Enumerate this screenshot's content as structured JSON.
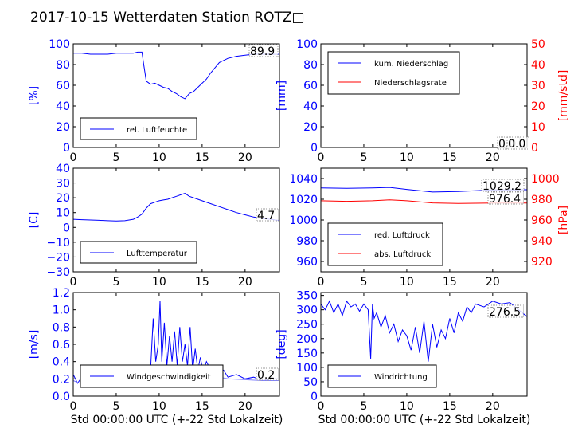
{
  "title": "2017-10-15 Wetterdaten Station ROTZ□",
  "xlabel": "Std 00:00:00 UTC (+-22 Std Lokalzeit)",
  "colors": {
    "blue": "#0000ff",
    "red": "#ff0000",
    "light_blue": "#8080ff"
  },
  "chart_data": [
    {
      "type": "line",
      "ylabel": "[%]",
      "xlim": [
        0,
        24
      ],
      "ylim": [
        0,
        100
      ],
      "xticks": [
        "0",
        "5",
        "10",
        "15",
        "20"
      ],
      "yticks": [
        "0",
        "20",
        "40",
        "60",
        "80",
        "100"
      ],
      "legend": "lower-left",
      "last_value_label": "89.9",
      "series": [
        {
          "name": "rel. Luftfeuchte",
          "color": "#0000ff",
          "x": [
            0,
            1,
            2,
            3,
            4,
            5,
            6,
            7,
            7.5,
            8,
            8.2,
            8.5,
            9,
            9.5,
            10,
            10.5,
            11,
            11.5,
            12,
            12.5,
            13,
            13.5,
            14,
            14.5,
            15,
            15.5,
            16,
            16.5,
            17,
            18,
            19,
            20,
            21,
            22,
            23,
            24
          ],
          "y": [
            91,
            91,
            90,
            90,
            90,
            91,
            91,
            91,
            92,
            92,
            80,
            64,
            61,
            62,
            60,
            58,
            57,
            54,
            52,
            49,
            47,
            52,
            54,
            58,
            62,
            66,
            72,
            77,
            82,
            86,
            88,
            89,
            90,
            90,
            90,
            89.9
          ]
        }
      ]
    },
    {
      "type": "line",
      "ylabel": "[mm]",
      "ylabel_right": "[mm/std]",
      "xlim": [
        0,
        24
      ],
      "ylim": [
        0,
        100
      ],
      "ylim_right": [
        0,
        50
      ],
      "xticks": [
        "0",
        "5",
        "10",
        "15",
        "20"
      ],
      "yticks": [
        "0",
        "20",
        "40",
        "60",
        "80",
        "100"
      ],
      "yticks_right": [
        "0",
        "10",
        "20",
        "30",
        "40",
        "50"
      ],
      "legend": "upper-left",
      "value_labels": [
        "0.0",
        "0.0"
      ],
      "series": [
        {
          "name": "kum. Niederschlag",
          "color": "#0000ff",
          "axis": "left",
          "x": [
            0,
            24
          ],
          "y": [
            0,
            0
          ]
        },
        {
          "name": "Niederschlagsrate",
          "color": "#ff0000",
          "axis": "right",
          "x": [
            0,
            24
          ],
          "y": [
            0,
            0
          ]
        }
      ]
    },
    {
      "type": "line",
      "ylabel": "[C]",
      "xlim": [
        0,
        24
      ],
      "ylim": [
        -30,
        40
      ],
      "xticks": [
        "0",
        "5",
        "10",
        "15",
        "20"
      ],
      "yticks": [
        "−30",
        "−20",
        "−10",
        "0",
        "10",
        "20",
        "30",
        "40"
      ],
      "legend": "lower-left",
      "last_value_label": "4.7",
      "series": [
        {
          "name": "Lufttemperatur",
          "color": "#0000ff",
          "x": [
            0,
            1,
            2,
            3,
            4,
            5,
            6,
            7,
            7.5,
            8,
            8.5,
            9,
            9.5,
            10,
            10.5,
            11,
            11.5,
            12,
            12.5,
            13,
            13.5,
            14,
            15,
            16,
            17,
            18,
            19,
            20,
            21,
            22,
            23,
            24
          ],
          "y": [
            5.5,
            5.2,
            5.0,
            4.8,
            4.5,
            4.3,
            4.5,
            5.5,
            7,
            9,
            13,
            16,
            17,
            18,
            18.5,
            19,
            20,
            21,
            22,
            23,
            21,
            20,
            18,
            16,
            14,
            12,
            10,
            8.5,
            7,
            6,
            5.5,
            4.7
          ]
        }
      ]
    },
    {
      "type": "line",
      "ylabel_right": "[hPa]",
      "xlim": [
        0,
        24
      ],
      "ylim": [
        950,
        1050
      ],
      "ylim_right": [
        910,
        1010
      ],
      "xticks": [
        "0",
        "5",
        "10",
        "15",
        "20"
      ],
      "yticks": [
        "960",
        "980",
        "1000",
        "1020",
        "1040"
      ],
      "yticks_right": [
        "920",
        "940",
        "960",
        "980",
        "1000"
      ],
      "legend": "lower-left",
      "value_labels": [
        "1029.2",
        "976.4"
      ],
      "series": [
        {
          "name": "red. Luftdruck",
          "color": "#0000ff",
          "axis": "left",
          "x": [
            0,
            3,
            6,
            8,
            10,
            13,
            16,
            20,
            24
          ],
          "y": [
            1031,
            1030.5,
            1031,
            1031.5,
            1029.5,
            1027,
            1027.5,
            1029,
            1029.2
          ]
        },
        {
          "name": "abs. Luftdruck",
          "color": "#ff0000",
          "axis": "right",
          "x": [
            0,
            3,
            6,
            8,
            10,
            13,
            16,
            20,
            24
          ],
          "y": [
            978.5,
            978,
            978.5,
            979.5,
            978.5,
            976.5,
            976,
            976.3,
            976.4
          ]
        }
      ]
    },
    {
      "type": "line",
      "ylabel": "[m/s]",
      "xlim": [
        0,
        24
      ],
      "ylim": [
        0,
        1.2
      ],
      "xticks": [
        "0",
        "5",
        "10",
        "15",
        "20"
      ],
      "yticks": [
        "0.0",
        "0.2",
        "0.4",
        "0.6",
        "0.8",
        "1.0",
        "1.2"
      ],
      "legend": "lower-center",
      "last_value_label": "0.2",
      "series": [
        {
          "name": "Windgeschwindigkeit",
          "color": "#0000ff",
          "x": [
            0,
            0.5,
            1,
            1.5,
            2,
            2.5,
            3,
            3.5,
            4,
            4.5,
            5,
            5.5,
            6,
            6.5,
            7,
            7.5,
            8,
            8.5,
            9,
            9.3,
            9.6,
            9.9,
            10.1,
            10.3,
            10.6,
            10.9,
            11.2,
            11.5,
            11.8,
            12.1,
            12.4,
            12.7,
            13,
            13.3,
            13.6,
            13.9,
            14.2,
            14.5,
            14.8,
            15.1,
            15.5,
            16,
            16.5,
            17,
            17.5,
            18,
            19,
            20,
            21,
            22,
            23,
            24
          ],
          "y": [
            0.25,
            0.15,
            0.22,
            0.12,
            0.2,
            0.15,
            0.22,
            0.13,
            0.2,
            0.14,
            0.18,
            0.12,
            0.2,
            0.15,
            0.18,
            0.14,
            0.2,
            0.35,
            0.3,
            0.9,
            0.4,
            0.6,
            1.1,
            0.4,
            0.85,
            0.35,
            0.7,
            0.4,
            0.75,
            0.35,
            0.8,
            0.4,
            0.6,
            0.35,
            0.8,
            0.3,
            0.55,
            0.3,
            0.45,
            0.28,
            0.4,
            0.3,
            0.35,
            0.25,
            0.3,
            0.22,
            0.25,
            0.2,
            0.22,
            0.18,
            0.2,
            0.2
          ]
        },
        {
          "name": "",
          "color": "#8080ff",
          "x": [
            0,
            1,
            2,
            3,
            4,
            5,
            6,
            7,
            8,
            9,
            10,
            11,
            12,
            13,
            14,
            15,
            16,
            17,
            18,
            20,
            22,
            24
          ],
          "y": [
            0.18,
            0.14,
            0.17,
            0.13,
            0.15,
            0.12,
            0.16,
            0.14,
            0.17,
            0.25,
            0.3,
            0.32,
            0.3,
            0.31,
            0.29,
            0.27,
            0.25,
            0.22,
            0.2,
            0.19,
            0.18,
            0.18
          ]
        }
      ]
    },
    {
      "type": "line",
      "ylabel": "[deg]",
      "xlim": [
        0,
        24
      ],
      "ylim": [
        0,
        360
      ],
      "xticks": [
        "0",
        "5",
        "10",
        "15",
        "20"
      ],
      "yticks": [
        "0",
        "50",
        "100",
        "150",
        "200",
        "250",
        "300",
        "350"
      ],
      "legend": "lower-left",
      "last_value_label": "276.5",
      "series": [
        {
          "name": "Windrichtung",
          "color": "#0000ff",
          "x": [
            0,
            0.5,
            1,
            1.5,
            2,
            2.5,
            3,
            3.5,
            4,
            4.5,
            5,
            5.5,
            5.8,
            6,
            6.2,
            6.5,
            7,
            7.5,
            8,
            8.5,
            9,
            9.5,
            10,
            10.5,
            11,
            11.5,
            12,
            12.5,
            13,
            13.5,
            14,
            14.5,
            15,
            15.5,
            16,
            16.5,
            17,
            17.5,
            18,
            19,
            20,
            21,
            22,
            23,
            24
          ],
          "y": [
            320,
            300,
            330,
            290,
            320,
            280,
            330,
            310,
            320,
            295,
            320,
            300,
            130,
            320,
            270,
            290,
            240,
            280,
            220,
            250,
            190,
            230,
            210,
            160,
            240,
            150,
            260,
            120,
            250,
            170,
            230,
            200,
            270,
            220,
            290,
            260,
            310,
            290,
            320,
            310,
            330,
            320,
            325,
            300,
            276.5
          ]
        }
      ]
    }
  ]
}
